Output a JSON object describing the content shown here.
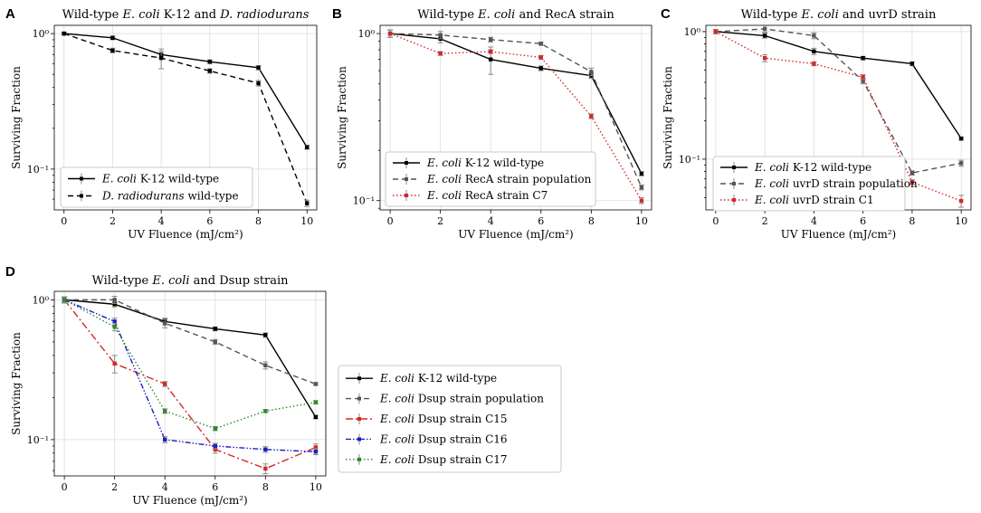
{
  "figure": {
    "panels": [
      "A",
      "B",
      "C",
      "D"
    ]
  },
  "chart_data": [
    {
      "panel": "A",
      "type": "line",
      "title": "Wild-type E. coli K-12 and D. radiodurans",
      "xlabel": "UV Fluence (mJ/cm²)",
      "ylabel": "Surviving Fraction",
      "yscale": "log",
      "x_ticks": [
        0,
        2,
        4,
        6,
        8,
        10
      ],
      "y_ticks": [
        {
          "value": 1,
          "label": "10⁰"
        },
        {
          "value": 0.1,
          "label": "10⁻¹"
        }
      ],
      "xlim": [
        -0.4,
        10.4
      ],
      "ylim": [
        0.05,
        1.15
      ],
      "legend_position": "lower-left",
      "series": [
        {
          "name": "E. coli K-12 wild-type",
          "color": "#000000",
          "dash": "solid",
          "x": [
            0,
            2,
            4,
            6,
            8,
            10
          ],
          "y": [
            1.0,
            0.93,
            0.7,
            0.62,
            0.56,
            0.145
          ],
          "err": [
            0.02,
            0.03,
            0.04,
            0.02,
            0.02,
            0.005
          ]
        },
        {
          "name": "D. radiodurans wild-type",
          "color": "#000000",
          "dash": "dashed",
          "x": [
            0,
            2,
            4,
            6,
            8,
            10
          ],
          "y": [
            1.0,
            0.75,
            0.66,
            0.53,
            0.43,
            0.056
          ],
          "err": [
            0.02,
            0.03,
            0.11,
            0.02,
            0.02,
            0.003
          ]
        }
      ]
    },
    {
      "panel": "B",
      "type": "line",
      "title": "Wild-type E. coli and RecA strain",
      "xlabel": "UV Fluence (mJ/cm²)",
      "ylabel": "Surviving Fraction",
      "yscale": "log",
      "x_ticks": [
        0,
        2,
        4,
        6,
        8,
        10
      ],
      "y_ticks": [
        {
          "value": 1,
          "label": "10⁰"
        },
        {
          "value": 0.1,
          "label": "10⁻¹"
        }
      ],
      "xlim": [
        -0.4,
        10.4
      ],
      "ylim": [
        0.088,
        1.12
      ],
      "legend_position": "lower-left",
      "series": [
        {
          "name": "E. coli K-12 wild-type",
          "color": "#000000",
          "dash": "solid",
          "x": [
            0,
            2,
            4,
            6,
            8,
            10
          ],
          "y": [
            1.0,
            0.93,
            0.7,
            0.62,
            0.56,
            0.145
          ],
          "err": [
            0.05,
            0.05,
            0.13,
            0.02,
            0.02,
            0.004
          ]
        },
        {
          "name": "E. coli RecA strain population",
          "color": "#555555",
          "dash": "dashed",
          "x": [
            0,
            2,
            4,
            6,
            8,
            10
          ],
          "y": [
            1.0,
            0.98,
            0.92,
            0.87,
            0.59,
            0.12
          ],
          "err": [
            0.05,
            0.05,
            0.03,
            0.02,
            0.03,
            0.004
          ]
        },
        {
          "name": "E. coli RecA strain C7",
          "color": "#d62728",
          "dash": "dotted",
          "x": [
            0,
            2,
            4,
            6,
            8,
            10
          ],
          "y": [
            1.0,
            0.76,
            0.78,
            0.72,
            0.32,
            0.1
          ],
          "err": [
            0.05,
            0.02,
            0.02,
            0.02,
            0.01,
            0.004
          ]
        }
      ]
    },
    {
      "panel": "C",
      "type": "line",
      "title": "Wild-type E. coli and uvrD strain",
      "xlabel": "UV Fluence (mJ/cm²)",
      "ylabel": "Surviving Fraction",
      "yscale": "log",
      "x_ticks": [
        0,
        2,
        4,
        6,
        8,
        10
      ],
      "y_ticks": [
        {
          "value": 1,
          "label": "10⁰"
        },
        {
          "value": 0.1,
          "label": "10⁻¹"
        }
      ],
      "xlim": [
        -0.4,
        10.4
      ],
      "ylim": [
        0.04,
        1.12
      ],
      "legend_position": "lower-left",
      "series": [
        {
          "name": "E. coli K-12 wild-type",
          "color": "#000000",
          "dash": "solid",
          "x": [
            0,
            2,
            4,
            6,
            8,
            10
          ],
          "y": [
            1.0,
            0.93,
            0.7,
            0.62,
            0.56,
            0.145
          ],
          "err": [
            0.04,
            0.04,
            0.04,
            0.02,
            0.02,
            0.004
          ]
        },
        {
          "name": "E. coli uvrD strain population",
          "color": "#555555",
          "dash": "dashed",
          "x": [
            0,
            2,
            4,
            6,
            8,
            10
          ],
          "y": [
            1.0,
            1.05,
            0.93,
            0.41,
            0.078,
            0.093
          ],
          "err": [
            0.04,
            0.06,
            0.05,
            0.02,
            0.003,
            0.005
          ]
        },
        {
          "name": "E. coli uvrD strain C1",
          "color": "#d62728",
          "dash": "dotted",
          "x": [
            0,
            2,
            4,
            6,
            8,
            10
          ],
          "y": [
            1.0,
            0.62,
            0.56,
            0.44,
            0.066,
            0.047
          ],
          "err": [
            0.04,
            0.04,
            0.02,
            0.02,
            0.003,
            0.005
          ]
        }
      ]
    },
    {
      "panel": "D",
      "type": "line",
      "title": "Wild-type E. coli and Dsup strain",
      "xlabel": "UV Fluence (mJ/cm²)",
      "ylabel": "Surviving Fraction",
      "yscale": "log",
      "x_ticks": [
        0,
        2,
        4,
        6,
        8,
        10
      ],
      "y_ticks": [
        {
          "value": 1,
          "label": "10⁰"
        },
        {
          "value": 0.1,
          "label": "10⁻¹"
        }
      ],
      "xlim": [
        -0.4,
        10.4
      ],
      "ylim": [
        0.055,
        1.15
      ],
      "legend_position": "outside-right",
      "series": [
        {
          "name": "E. coli K-12 wild-type",
          "color": "#000000",
          "dash": "solid",
          "x": [
            0,
            2,
            4,
            6,
            8,
            10
          ],
          "y": [
            1.0,
            0.93,
            0.7,
            0.62,
            0.56,
            0.145
          ],
          "err": [
            0.04,
            0.04,
            0.04,
            0.02,
            0.02,
            0.004
          ]
        },
        {
          "name": "E. coli Dsup strain population",
          "color": "#555555",
          "dash": "dashed",
          "x": [
            0,
            2,
            4,
            6,
            8,
            10
          ],
          "y": [
            1.0,
            1.0,
            0.68,
            0.5,
            0.34,
            0.25
          ],
          "err": [
            0.05,
            0.06,
            0.05,
            0.02,
            0.02,
            0.005
          ]
        },
        {
          "name": "E. coli Dsup strain C15",
          "color": "#d62728",
          "dash": "dashdot",
          "x": [
            0,
            2,
            4,
            6,
            8,
            10
          ],
          "y": [
            1.0,
            0.35,
            0.25,
            0.085,
            0.062,
            0.088
          ],
          "err": [
            0.05,
            0.05,
            0.01,
            0.005,
            0.005,
            0.005
          ]
        },
        {
          "name": "E. coli Dsup strain C16",
          "color": "#1f1fc4",
          "dash": "dashdotdot",
          "x": [
            0,
            2,
            4,
            6,
            8,
            10
          ],
          "y": [
            1.0,
            0.7,
            0.1,
            0.09,
            0.085,
            0.082
          ],
          "err": [
            0.05,
            0.04,
            0.005,
            0.004,
            0.004,
            0.004
          ]
        },
        {
          "name": "E. coli Dsup strain C17",
          "color": "#2a8a2a",
          "dash": "dotted",
          "x": [
            0,
            2,
            4,
            6,
            8,
            10
          ],
          "y": [
            1.0,
            0.64,
            0.16,
            0.12,
            0.16,
            0.185
          ],
          "err": [
            0.05,
            0.04,
            0.006,
            0.004,
            0.004,
            0.005
          ]
        }
      ]
    }
  ]
}
